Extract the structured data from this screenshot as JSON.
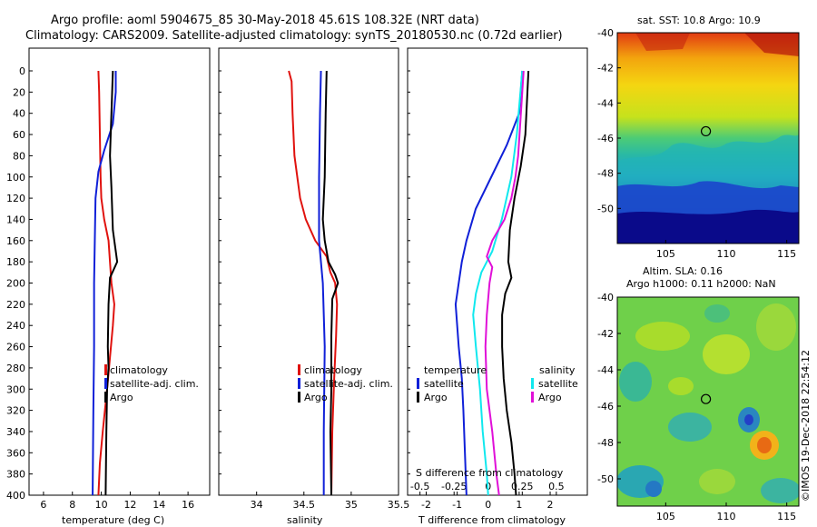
{
  "header": {
    "line1": "Argo profile: aoml 5904675_85 30-May-2018 45.61S 108.32E (NRT data)",
    "line2": "Climatology: CARS2009. Satellite-adjusted climatology: synTS_20180530.nc (0.72d earlier)"
  },
  "colors": {
    "climatology": "#e0120e",
    "satellite": "#1020d8",
    "argo": "#000000",
    "sat_salinity": "#10e8ee",
    "argo_salinity": "#e010d8"
  },
  "chart_data": [
    {
      "id": "temperature",
      "type": "line",
      "xlabel": "temperature (deg C)",
      "xlim": [
        5,
        17.5
      ],
      "xticks": [
        6,
        8,
        10,
        12,
        14,
        16
      ],
      "ylim": [
        400,
        0
      ],
      "yticks": [
        0,
        20,
        40,
        60,
        80,
        100,
        120,
        140,
        160,
        180,
        200,
        220,
        240,
        260,
        280,
        300,
        320,
        340,
        360,
        380,
        400
      ],
      "legend": [
        "climatology",
        "satellite-adj. clim.",
        "Argo"
      ],
      "series": [
        {
          "name": "climatology",
          "color": "#e0120e",
          "points": [
            [
              9.8,
              0
            ],
            [
              9.85,
              20
            ],
            [
              9.9,
              60
            ],
            [
              9.95,
              100
            ],
            [
              10.0,
              120
            ],
            [
              10.2,
              140
            ],
            [
              10.5,
              160
            ],
            [
              10.6,
              180
            ],
            [
              10.7,
              200
            ],
            [
              10.9,
              220
            ],
            [
              10.8,
              240
            ],
            [
              10.6,
              270
            ],
            [
              10.4,
              300
            ],
            [
              10.1,
              340
            ],
            [
              9.9,
              370
            ],
            [
              9.8,
              400
            ]
          ]
        },
        {
          "name": "satellite-adj. clim.",
          "color": "#1020d8",
          "points": [
            [
              11.0,
              0
            ],
            [
              11.0,
              20
            ],
            [
              10.8,
              50
            ],
            [
              10.2,
              75
            ],
            [
              9.8,
              95
            ],
            [
              9.6,
              120
            ],
            [
              9.55,
              160
            ],
            [
              9.5,
              200
            ],
            [
              9.5,
              260
            ],
            [
              9.45,
              320
            ],
            [
              9.4,
              400
            ]
          ]
        },
        {
          "name": "Argo",
          "color": "#000000",
          "points": [
            [
              10.8,
              0
            ],
            [
              10.7,
              40
            ],
            [
              10.6,
              80
            ],
            [
              10.7,
              110
            ],
            [
              10.8,
              150
            ],
            [
              11.1,
              180
            ],
            [
              10.6,
              195
            ],
            [
              10.5,
              220
            ],
            [
              10.45,
              260
            ],
            [
              10.5,
              280
            ],
            [
              10.4,
              300
            ],
            [
              10.35,
              340
            ],
            [
              10.3,
              400
            ]
          ]
        }
      ]
    },
    {
      "id": "salinity",
      "type": "line",
      "xlabel": "salinity",
      "xlim": [
        33.6,
        35.5
      ],
      "xticks": [
        34,
        34.5,
        35,
        35.5
      ],
      "ylim": [
        400,
        0
      ],
      "legend": [
        "climatology",
        "satellite-adj. clim.",
        "Argo"
      ],
      "series": [
        {
          "name": "climatology",
          "color": "#e0120e",
          "points": [
            [
              34.34,
              0
            ],
            [
              34.37,
              10
            ],
            [
              34.38,
              40
            ],
            [
              34.4,
              80
            ],
            [
              34.43,
              100
            ],
            [
              34.46,
              120
            ],
            [
              34.52,
              140
            ],
            [
              34.62,
              160
            ],
            [
              34.74,
              175
            ],
            [
              34.78,
              190
            ],
            [
              34.83,
              200
            ],
            [
              34.85,
              220
            ],
            [
              34.84,
              250
            ],
            [
              34.82,
              290
            ],
            [
              34.8,
              340
            ],
            [
              34.79,
              400
            ]
          ]
        },
        {
          "name": "satellite-adj. clim.",
          "color": "#1020d8",
          "points": [
            [
              34.68,
              0
            ],
            [
              34.67,
              40
            ],
            [
              34.66,
              100
            ],
            [
              34.66,
              160
            ],
            [
              34.7,
              200
            ],
            [
              34.72,
              260
            ],
            [
              34.71,
              340
            ],
            [
              34.71,
              400
            ]
          ]
        },
        {
          "name": "Argo",
          "color": "#000000",
          "points": [
            [
              34.74,
              0
            ],
            [
              34.73,
              40
            ],
            [
              34.72,
              100
            ],
            [
              34.7,
              140
            ],
            [
              34.72,
              160
            ],
            [
              34.76,
              180
            ],
            [
              34.83,
              192
            ],
            [
              34.86,
              200
            ],
            [
              34.8,
              215
            ],
            [
              34.79,
              250
            ],
            [
              34.79,
              300
            ],
            [
              34.78,
              340
            ],
            [
              34.79,
              400
            ]
          ]
        }
      ]
    },
    {
      "id": "difference",
      "type": "line",
      "xlabel": "T difference from climatology",
      "xlim": [
        -2.6,
        3.2
      ],
      "xticks": [
        -2,
        -1,
        0,
        1,
        2
      ],
      "top_axis_label": "S difference from climatology",
      "top_ticks": [
        "-0.5",
        "-0.25",
        "0",
        "0.25",
        "0.5"
      ],
      "top_tick_values": [
        -0.5,
        -0.25,
        0,
        0.25,
        0.5
      ],
      "s_scale": 4.4,
      "ylim": [
        400,
        0
      ],
      "legend_left_title": "temperature",
      "legend_right_title": "salinity",
      "legend_left": [
        "satellite",
        "Argo"
      ],
      "legend_right": [
        "satellite",
        "Argo"
      ],
      "series": [
        {
          "name": "T satellite",
          "color": "#1020d8",
          "points": [
            [
              1.1,
              0
            ],
            [
              1.0,
              40
            ],
            [
              0.6,
              70
            ],
            [
              0.1,
              100
            ],
            [
              -0.4,
              130
            ],
            [
              -0.7,
              160
            ],
            [
              -0.85,
              180
            ],
            [
              -0.95,
              200
            ],
            [
              -1.05,
              220
            ],
            [
              -1.0,
              240
            ],
            [
              -0.95,
              260
            ],
            [
              -0.85,
              290
            ],
            [
              -0.8,
              320
            ],
            [
              -0.75,
              360
            ],
            [
              -0.7,
              400
            ]
          ]
        },
        {
          "name": "T Argo",
          "color": "#000000",
          "points": [
            [
              1.3,
              0
            ],
            [
              1.25,
              30
            ],
            [
              1.2,
              60
            ],
            [
              1.05,
              90
            ],
            [
              0.85,
              120
            ],
            [
              0.7,
              150
            ],
            [
              0.65,
              180
            ],
            [
              0.75,
              195
            ],
            [
              0.55,
              210
            ],
            [
              0.45,
              230
            ],
            [
              0.45,
              260
            ],
            [
              0.5,
              290
            ],
            [
              0.6,
              320
            ],
            [
              0.75,
              350
            ],
            [
              0.85,
              380
            ],
            [
              0.9,
              400
            ]
          ]
        },
        {
          "name": "S satellite",
          "color": "#10e8ee",
          "points": [
            [
              0.25,
              0
            ],
            [
              0.23,
              30
            ],
            [
              0.21,
              60
            ],
            [
              0.17,
              100
            ],
            [
              0.1,
              140
            ],
            [
              0.03,
              170
            ],
            [
              -0.05,
              190
            ],
            [
              -0.09,
              210
            ],
            [
              -0.11,
              230
            ],
            [
              -0.09,
              260
            ],
            [
              -0.06,
              300
            ],
            [
              -0.04,
              340
            ],
            [
              -0.01,
              380
            ],
            [
              0,
              400
            ]
          ]
        },
        {
          "name": "S Argo",
          "color": "#e010d8",
          "points": [
            [
              0.26,
              0
            ],
            [
              0.24,
              40
            ],
            [
              0.22,
              80
            ],
            [
              0.2,
              100
            ],
            [
              0.17,
              120
            ],
            [
              0.12,
              140
            ],
            [
              0.03,
              160
            ],
            [
              -0.01,
              175
            ],
            [
              0.03,
              185
            ],
            [
              0.01,
              200
            ],
            [
              -0.01,
              230
            ],
            [
              -0.02,
              260
            ],
            [
              -0.01,
              300
            ],
            [
              0.03,
              340
            ],
            [
              0.06,
              380
            ],
            [
              0.08,
              400
            ]
          ]
        }
      ]
    },
    {
      "id": "sst-map",
      "type": "heatmap",
      "title": "sat. SST: 10.8 Argo: 10.9",
      "xticks": [
        105,
        110,
        115
      ],
      "yticks": [
        -40,
        -42,
        -44,
        -46,
        -48,
        -50
      ],
      "xlim": [
        101,
        116
      ],
      "ylim": [
        -52,
        -40
      ],
      "argo_position": [
        108.32,
        -45.61
      ]
    },
    {
      "id": "sla-map",
      "type": "heatmap",
      "title_line1": "Altim. SLA: 0.16",
      "title_line2": "Argo h1000: 0.11 h2000: NaN",
      "xticks": [
        105,
        110,
        115
      ],
      "yticks": [
        -40,
        -42,
        -44,
        -46,
        -48,
        -50
      ],
      "xlim": [
        101,
        116
      ],
      "ylim": [
        -51.5,
        -40
      ],
      "argo_position": [
        108.32,
        -45.61
      ]
    }
  ],
  "watermark": "©IMOS 19-Dec-2018 22:54:12"
}
